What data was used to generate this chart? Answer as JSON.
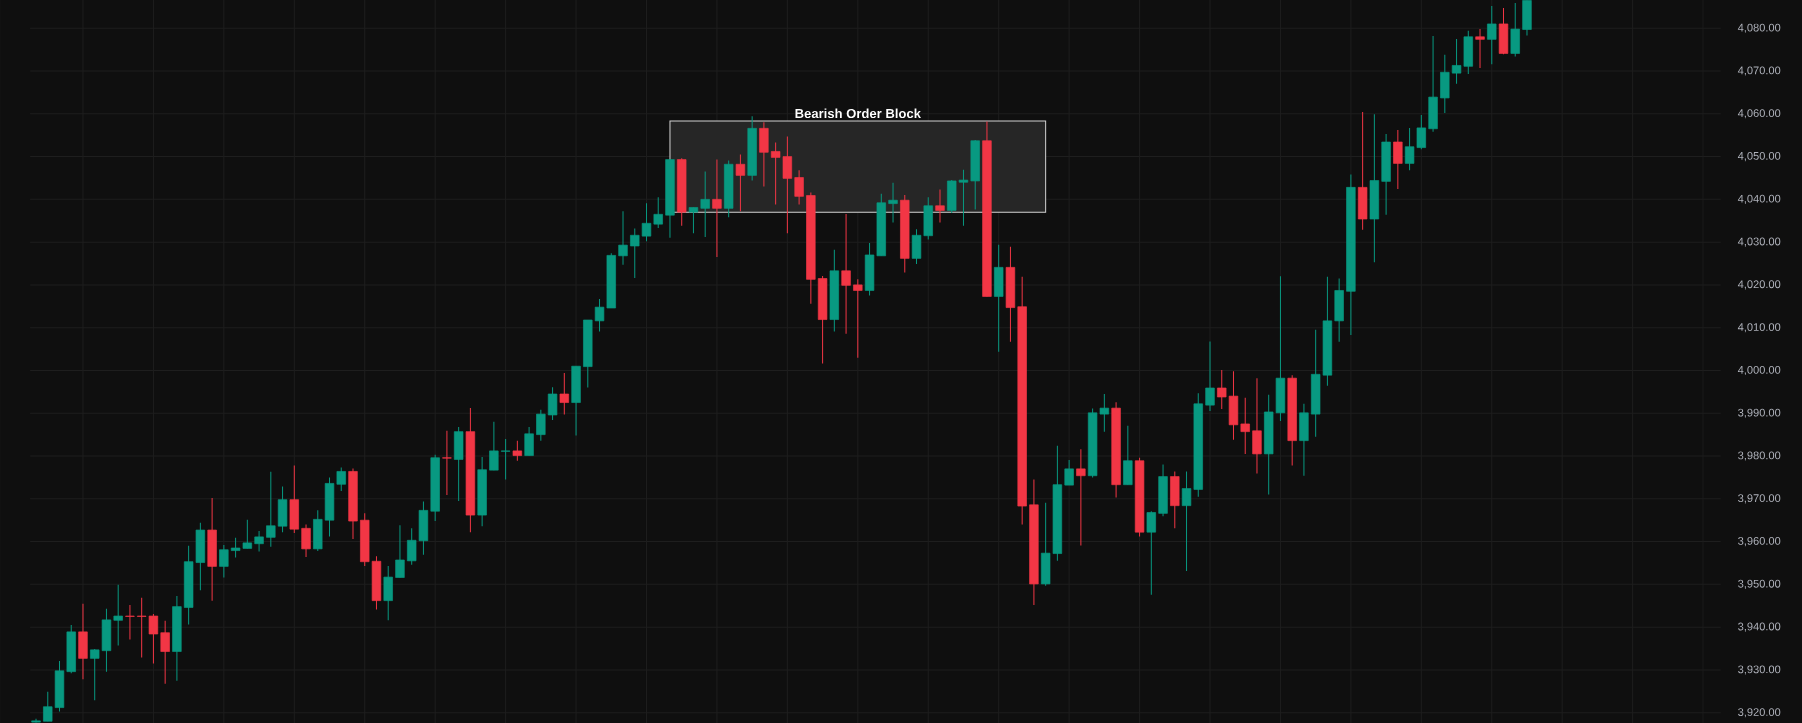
{
  "chart_data": {
    "type": "candlestick",
    "categories": [
      null,
      null,
      null,
      null,
      null,
      null,
      null,
      null,
      null,
      null,
      null,
      null,
      null,
      null,
      null,
      null,
      null,
      null,
      null,
      null,
      null,
      null,
      null,
      null,
      null,
      null,
      null,
      null,
      null,
      null,
      null,
      null,
      null,
      null,
      null,
      null,
      null,
      null,
      null,
      null,
      null,
      null,
      null,
      null,
      null,
      null,
      null,
      null,
      null,
      null,
      null,
      null,
      null,
      null,
      null,
      null,
      null,
      null,
      null,
      null,
      null,
      null,
      null,
      null,
      null,
      null,
      null,
      null,
      null,
      null,
      null,
      null,
      null,
      null,
      null,
      null,
      null,
      null,
      null,
      null,
      null,
      null,
      null,
      null,
      null,
      null,
      null,
      null,
      null,
      null,
      null,
      null,
      null,
      null,
      null,
      null,
      null,
      null,
      null,
      null,
      null,
      null,
      null,
      null,
      null,
      null,
      null,
      null,
      null,
      null,
      null,
      null,
      null,
      null,
      null,
      null,
      null,
      null,
      null,
      null,
      null,
      null,
      null,
      null,
      null,
      null,
      null,
      null,
      null,
      null,
      null,
      null,
      null,
      null,
      null,
      null,
      null,
      null,
      null,
      null,
      null,
      null,
      null,
      null
    ],
    "ohlc": [
      [
        3917.8,
        3918.6,
        3917.7,
        3918.1
      ],
      [
        3918.0,
        3924.9,
        3918.0,
        3921.4
      ],
      [
        3921.2,
        3932.1,
        3920.3,
        3929.8
      ],
      [
        3929.6,
        3940.5,
        3929.2,
        3938.9
      ],
      [
        3938.9,
        3945.5,
        3927.8,
        3932.7
      ],
      [
        3932.7,
        3934.9,
        3922.9,
        3934.7
      ],
      [
        3934.5,
        3944.3,
        3929.6,
        3941.7
      ],
      [
        3941.6,
        3949.9,
        3935.7,
        3942.6
      ],
      [
        3942.6,
        3945.2,
        3937.1,
        3942.5
      ],
      [
        3942.6,
        3946.9,
        3932.9,
        3942.5
      ],
      [
        3942.6,
        3943.1,
        3931.5,
        3938.4
      ],
      [
        3938.7,
        3941.5,
        3926.8,
        3934.3
      ],
      [
        3934.3,
        3947.3,
        3927.5,
        3944.8
      ],
      [
        3944.6,
        3959.0,
        3940.6,
        3955.3
      ],
      [
        3955.1,
        3964.4,
        3948.6,
        3962.7
      ],
      [
        3962.7,
        3970.2,
        3946.2,
        3954.2
      ],
      [
        3954.2,
        3959.2,
        3951.6,
        3958.1
      ],
      [
        3957.9,
        3960.9,
        3956.3,
        3958.5
      ],
      [
        3958.4,
        3965.1,
        3958.4,
        3959.7
      ],
      [
        3959.5,
        3962.5,
        3957.7,
        3961.1
      ],
      [
        3961.0,
        3976.3,
        3958.8,
        3963.7
      ],
      [
        3963.6,
        3972.9,
        3962.2,
        3969.8
      ],
      [
        3969.8,
        3977.8,
        3962.0,
        3962.9
      ],
      [
        3963.1,
        3964.0,
        3956.4,
        3958.3
      ],
      [
        3958.3,
        3967.3,
        3957.8,
        3965.2
      ],
      [
        3965.0,
        3975.0,
        3961.2,
        3973.6
      ],
      [
        3973.4,
        3977.3,
        3971.8,
        3976.4
      ],
      [
        3976.4,
        3977.1,
        3960.6,
        3964.8
      ],
      [
        3965.0,
        3966.6,
        3954.3,
        3955.3
      ],
      [
        3955.4,
        3956.6,
        3944.1,
        3946.2
      ],
      [
        3946.2,
        3954.3,
        3941.6,
        3951.7
      ],
      [
        3951.6,
        3963.8,
        3951.6,
        3955.7
      ],
      [
        3955.5,
        3963.1,
        3954.6,
        3960.3
      ],
      [
        3960.2,
        3969.4,
        3956.9,
        3967.3
      ],
      [
        3967.1,
        3980.3,
        3964.8,
        3979.6
      ],
      [
        3979.6,
        3985.9,
        3970.9,
        3979.5
      ],
      [
        3979.2,
        3986.8,
        3969.5,
        3985.7
      ],
      [
        3985.7,
        3991.2,
        3962.2,
        3966.2
      ],
      [
        3966.2,
        3979.8,
        3963.6,
        3976.8
      ],
      [
        3976.7,
        3988.0,
        3976.7,
        3981.2
      ],
      [
        3981.1,
        3984.0,
        3974.5,
        3981.2
      ],
      [
        3981.2,
        3983.6,
        3978.9,
        3980.1
      ],
      [
        3980.1,
        3986.8,
        3980.1,
        3985.2
      ],
      [
        3985.0,
        3990.8,
        3983.6,
        3989.8
      ],
      [
        3989.6,
        3996.1,
        3988.4,
        3994.5
      ],
      [
        3994.5,
        3999.4,
        3989.7,
        3992.5
      ],
      [
        3992.5,
        4001.0,
        3984.8,
        4001.0
      ],
      [
        4000.9,
        4011.8,
        3996.0,
        4011.8
      ],
      [
        4011.6,
        4016.7,
        4009.1,
        4014.8
      ],
      [
        4014.6,
        4027.4,
        4014.6,
        4026.9
      ],
      [
        4026.8,
        4037.2,
        4024.7,
        4029.3
      ],
      [
        4029.1,
        4033.2,
        4021.6,
        4031.6
      ],
      [
        4031.4,
        4039.1,
        4030.2,
        4034.4
      ],
      [
        4034.2,
        4040.5,
        4033.3,
        4036.5
      ],
      [
        4036.3,
        4049.3,
        4031.0,
        4049.3
      ],
      [
        4049.3,
        4049.6,
        4033.8,
        4037.0
      ],
      [
        4037.0,
        4038.1,
        4032.1,
        4038.1
      ],
      [
        4037.9,
        4046.5,
        4031.2,
        4040.0
      ],
      [
        4040.0,
        4049.3,
        4026.5,
        4037.9
      ],
      [
        4037.9,
        4049.1,
        4035.8,
        4048.2
      ],
      [
        4048.2,
        4050.5,
        4037.2,
        4045.6
      ],
      [
        4045.6,
        4059.4,
        4044.4,
        4056.6
      ],
      [
        4056.6,
        4058.0,
        4043.0,
        4051.0
      ],
      [
        4051.2,
        4053.3,
        4038.8,
        4049.8
      ],
      [
        4050.0,
        4054.7,
        4032.1,
        4044.9
      ],
      [
        4045.1,
        4046.8,
        4038.8,
        4040.7
      ],
      [
        4040.9,
        4041.6,
        4015.6,
        4021.3
      ],
      [
        4021.5,
        4022.1,
        4001.6,
        4011.9
      ],
      [
        4011.9,
        4028.2,
        4009.1,
        4023.3
      ],
      [
        4023.3,
        4036.6,
        4008.6,
        4019.9
      ],
      [
        4020.0,
        4021.3,
        4003.0,
        4018.7
      ],
      [
        4018.7,
        4029.8,
        4017.5,
        4027.0
      ],
      [
        4026.8,
        4041.3,
        4026.8,
        4039.2
      ],
      [
        4039.0,
        4043.9,
        4034.6,
        4039.8
      ],
      [
        4039.8,
        4041.0,
        4022.9,
        4026.2
      ],
      [
        4026.2,
        4033.0,
        4024.9,
        4031.6
      ],
      [
        4031.5,
        4040.5,
        4030.6,
        4038.5
      ],
      [
        4038.5,
        4042.3,
        4034.6,
        4037.4
      ],
      [
        4037.4,
        4044.5,
        4036.8,
        4044.3
      ],
      [
        4044.0,
        4046.9,
        4033.8,
        4044.5
      ],
      [
        4044.3,
        4053.9,
        4037.6,
        4053.7
      ],
      [
        4053.7,
        4058.2,
        4017.3,
        4017.3
      ],
      [
        4017.3,
        4029.4,
        4004.4,
        4024.1
      ],
      [
        4024.1,
        4028.9,
        4006.7,
        4014.7
      ],
      [
        4014.9,
        4021.9,
        3964.0,
        3968.3
      ],
      [
        3968.6,
        3974.5,
        3945.2,
        3950.1
      ],
      [
        3950.1,
        3969.1,
        3949.7,
        3957.3
      ],
      [
        3957.2,
        3982.4,
        3955.5,
        3973.3
      ],
      [
        3973.2,
        3979.1,
        3973.2,
        3977.0
      ],
      [
        3977.0,
        3981.6,
        3959.1,
        3975.4
      ],
      [
        3975.4,
        3991.1,
        3975.0,
        3990.1
      ],
      [
        3989.8,
        3994.5,
        3985.7,
        3991.2
      ],
      [
        3991.2,
        3992.6,
        3970.3,
        3973.3
      ],
      [
        3973.3,
        3987.1,
        3973.3,
        3978.9
      ],
      [
        3978.9,
        3979.6,
        3961.2,
        3962.2
      ],
      [
        3962.2,
        3967.1,
        3947.6,
        3966.8
      ],
      [
        3966.6,
        3978.0,
        3965.9,
        3975.2
      ],
      [
        3975.2,
        3976.4,
        3963.1,
        3968.4
      ],
      [
        3968.4,
        3976.4,
        3953.1,
        3972.4
      ],
      [
        3972.2,
        3994.7,
        3970.5,
        3992.2
      ],
      [
        3991.9,
        4006.8,
        3990.5,
        3995.9
      ],
      [
        3995.9,
        4000.1,
        3991.0,
        3993.8
      ],
      [
        3994.0,
        3999.8,
        3983.8,
        3987.3
      ],
      [
        3987.5,
        3993.6,
        3980.5,
        3985.7
      ],
      [
        3985.9,
        3998.2,
        3975.9,
        3980.5
      ],
      [
        3980.5,
        3994.3,
        3971.0,
        3990.3
      ],
      [
        3990.1,
        4022.0,
        3988.2,
        3998.2
      ],
      [
        3998.2,
        3998.9,
        3977.8,
        3983.6
      ],
      [
        3983.6,
        3992.2,
        3975.4,
        3990.1
      ],
      [
        3989.8,
        4009.5,
        3984.5,
        3999.1
      ],
      [
        3998.9,
        4021.9,
        3996.4,
        4011.6
      ],
      [
        4011.6,
        4021.5,
        4006.7,
        4018.7
      ],
      [
        4018.5,
        4045.8,
        4008.3,
        4042.8
      ],
      [
        4042.8,
        4060.4,
        4032.9,
        4035.4
      ],
      [
        4035.4,
        4059.9,
        4025.3,
        4044.4
      ],
      [
        4044.2,
        4055.3,
        4036.4,
        4053.4
      ],
      [
        4053.4,
        4056.2,
        4042.4,
        4048.4
      ],
      [
        4048.4,
        4056.7,
        4046.8,
        4052.3
      ],
      [
        4052.1,
        4059.7,
        4051.7,
        4056.7
      ],
      [
        4056.5,
        4078.2,
        4055.8,
        4063.9
      ],
      [
        4063.7,
        4073.8,
        4060.2,
        4069.7
      ],
      [
        4069.5,
        4077.5,
        4067.0,
        4071.3
      ],
      [
        4071.1,
        4079.4,
        4069.3,
        4078.0
      ],
      [
        4078.0,
        4079.8,
        4070.7,
        4077.4
      ],
      [
        4077.4,
        4085.2,
        4071.6,
        4081.0
      ],
      [
        4081.0,
        4084.7,
        4073.9,
        4074.1
      ],
      [
        4074.1,
        4085.9,
        4073.4,
        4079.8
      ],
      [
        4079.7,
        4086.5,
        4078.3,
        4086.5
      ],
      null,
      null,
      null,
      null,
      null,
      null,
      null,
      null,
      null,
      null,
      null,
      null,
      null,
      null,
      null,
      null
    ],
    "colors": [
      "#089981",
      "#089981",
      "#089981",
      "#089981",
      "#f23645",
      "#089981",
      "#089981",
      "#089981",
      "#f23645",
      "#f23645",
      "#f23645",
      "#f23645",
      "#089981",
      "#089981",
      "#089981",
      "#f23645",
      "#089981",
      "#089981",
      "#089981",
      "#089981",
      "#089981",
      "#089981",
      "#f23645",
      "#f23645",
      "#089981",
      "#089981",
      "#089981",
      "#f23645",
      "#f23645",
      "#f23645",
      "#089981",
      "#089981",
      "#089981",
      "#089981",
      "#089981",
      "#f23645",
      "#089981",
      "#f23645",
      "#089981",
      "#089981",
      "#089981",
      "#f23645",
      "#089981",
      "#089981",
      "#089981",
      "#f23645",
      "#089981",
      "#089981",
      "#089981",
      "#089981",
      "#089981",
      "#089981",
      "#089981",
      "#089981",
      "#089981",
      "#f23645",
      "#089981",
      "#089981",
      "#f23645",
      "#089981",
      "#f23645",
      "#089981",
      "#f23645",
      "#f23645",
      "#f23645",
      "#f23645",
      "#f23645",
      "#f23645",
      "#089981",
      "#f23645",
      "#f23645",
      "#089981",
      "#089981",
      "#089981",
      "#f23645",
      "#089981",
      "#089981",
      "#f23645",
      "#089981",
      "#089981",
      "#089981",
      "#f23645",
      "#089981",
      "#f23645",
      "#f23645",
      "#f23645",
      "#089981",
      "#089981",
      "#089981",
      "#f23645",
      "#089981",
      "#089981",
      "#f23645",
      "#089981",
      "#f23645",
      "#089981",
      "#089981",
      "#f23645",
      "#089981",
      "#089981",
      "#089981",
      "#f23645",
      "#f23645",
      "#f23645",
      "#f23645",
      "#089981",
      "#089981",
      "#f23645",
      "#089981",
      "#089981",
      "#089981",
      "#089981",
      "#089981",
      "#f23645",
      "#089981",
      "#089981",
      "#f23645",
      "#089981",
      "#089981",
      "#089981",
      "#089981",
      "#089981",
      "#089981",
      "#f23645",
      "#089981",
      "#f23645",
      "#089981",
      "#089981",
      null,
      null,
      null,
      null,
      null,
      null,
      null,
      null,
      null,
      null,
      null,
      null,
      null,
      null,
      null,
      null
    ],
    "ylim": [
      3917.6,
      4086.6
    ],
    "yticks": [
      {
        "value": 3920,
        "label": "3,920.00"
      },
      {
        "value": 3930,
        "label": "3,930.00"
      },
      {
        "value": 3940,
        "label": "3,940.00"
      },
      {
        "value": 3950,
        "label": "3,950.00"
      },
      {
        "value": 3960,
        "label": "3,960.00"
      },
      {
        "value": 3970,
        "label": "3,970.00"
      },
      {
        "value": 3980,
        "label": "3,980.00"
      },
      {
        "value": 3990,
        "label": "3,990.00"
      },
      {
        "value": 4000,
        "label": "4,000.00"
      },
      {
        "value": 4010,
        "label": "4,010.00"
      },
      {
        "value": 4020,
        "label": "4,020.00"
      },
      {
        "value": 4030,
        "label": "4,030.00"
      },
      {
        "value": 4040,
        "label": "4,040.00"
      },
      {
        "value": 4050,
        "label": "4,050.00"
      },
      {
        "value": 4060,
        "label": "4,060.00"
      },
      {
        "value": 4070,
        "label": "4,070.00"
      },
      {
        "value": 4080,
        "label": "4,080.00"
      }
    ],
    "bands": [
      {
        "axis": "y",
        "from": 4037.0,
        "to": 4058.3,
        "label": "Bearish Order Block",
        "color": "#262626"
      }
    ],
    "grid": true,
    "tick_labels": "y"
  }
}
